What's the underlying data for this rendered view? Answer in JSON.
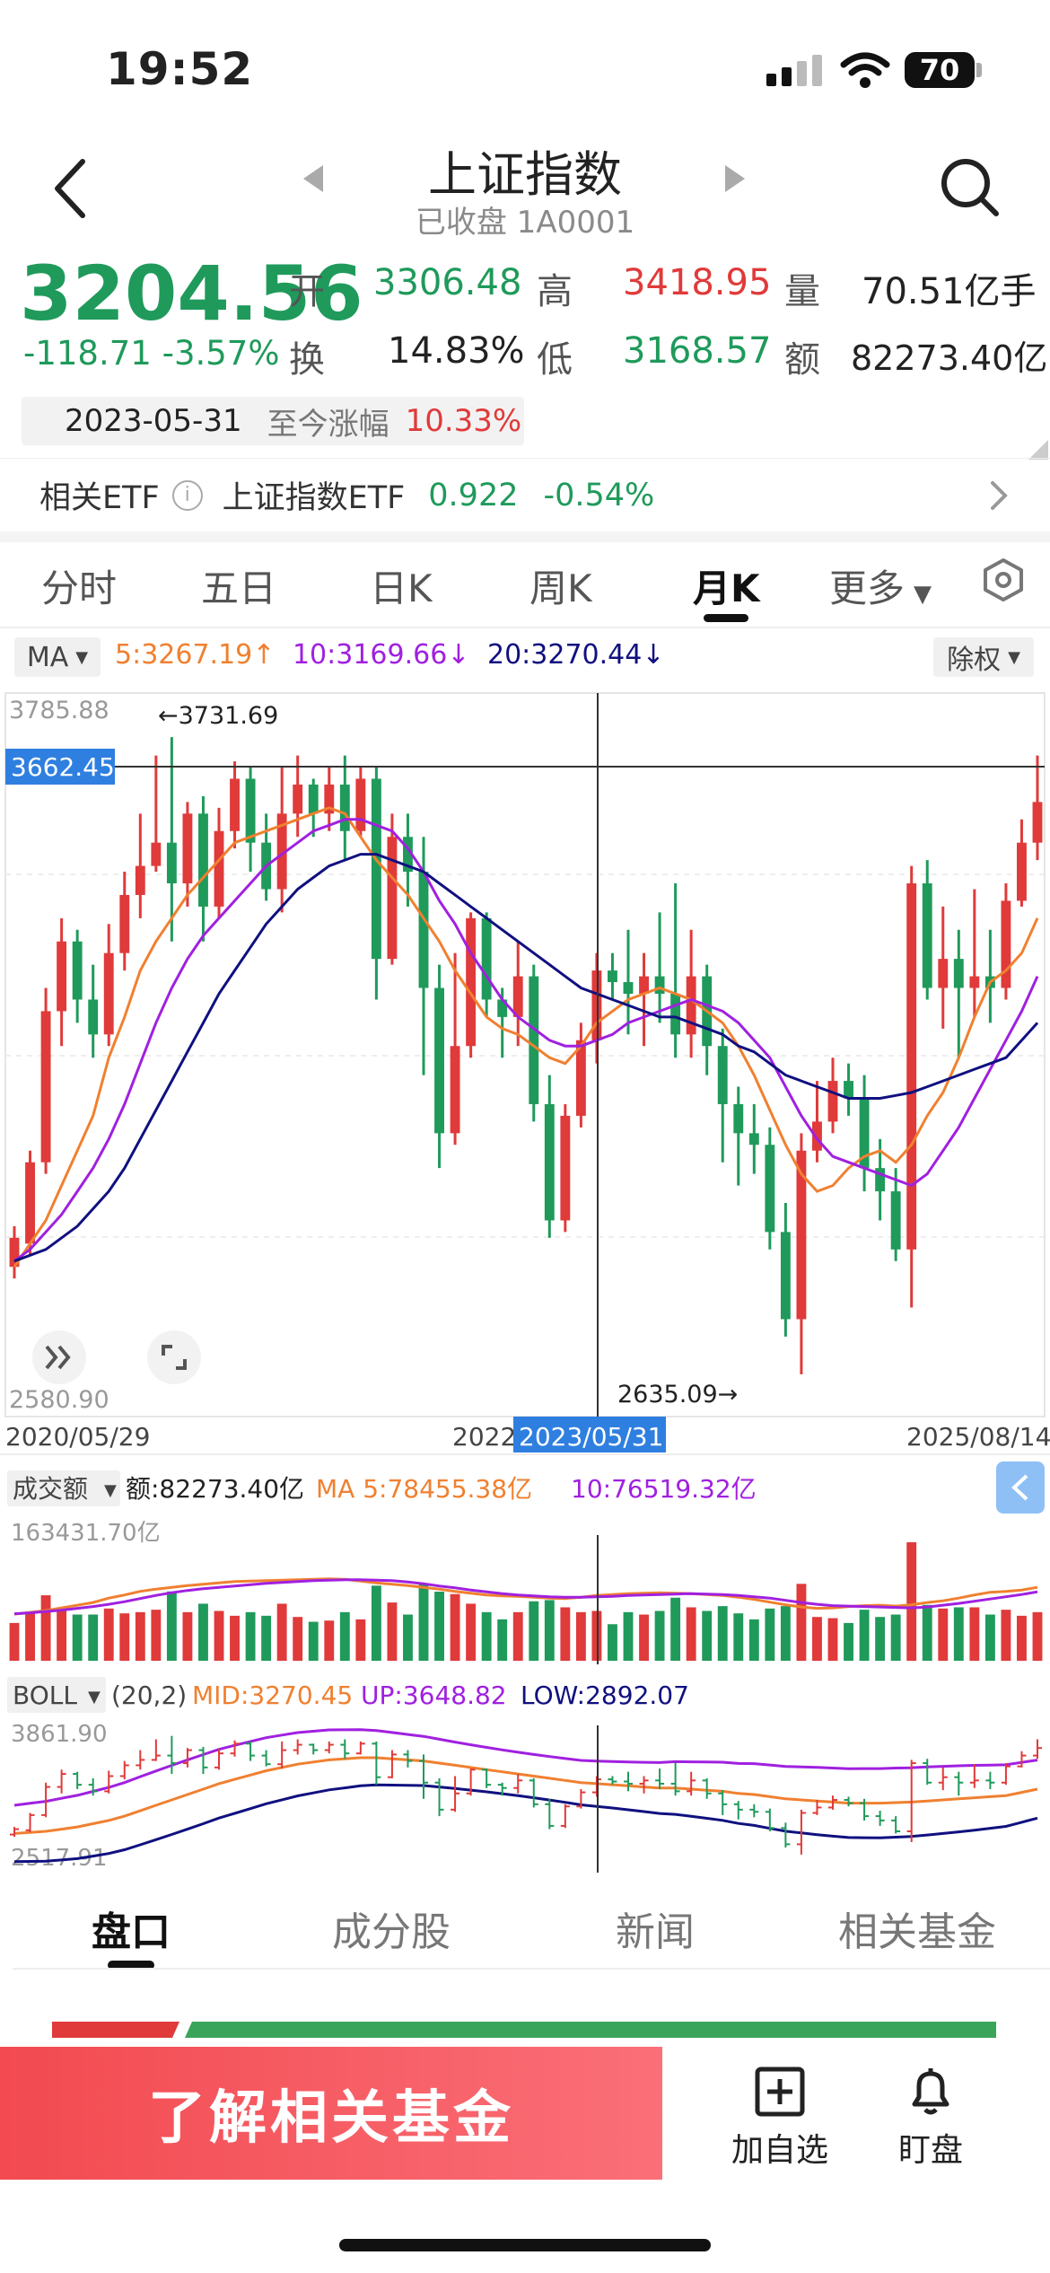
{
  "status": {
    "time": "19:52",
    "battery": "70"
  },
  "header": {
    "title": "上证指数",
    "subtitle": "已收盘 1A0001"
  },
  "quote": {
    "price": "3204.56",
    "change": "-118.71",
    "change_pct": "-3.57%",
    "open_label": "开",
    "open": "3306.48",
    "high_label": "高",
    "high": "3418.95",
    "volume_label": "量",
    "volume": "70.51亿手",
    "turnover_label": "换",
    "turnover": "14.83%",
    "low_label": "低",
    "low": "3168.57",
    "amount_label": "额",
    "amount": "82273.40亿",
    "date": "2023-05-31",
    "since_label": "至今涨幅",
    "since_pct": "10.33%"
  },
  "etf": {
    "label": "相关ETF",
    "info_icon": "i",
    "name": "上证指数ETF",
    "price": "0.922",
    "change": "-0.54%"
  },
  "period_tabs": [
    "分时",
    "五日",
    "日K",
    "周K",
    "月K",
    "更多"
  ],
  "period_active": 4,
  "ma_row": {
    "select": "MA",
    "ma5": "5:3267.19",
    "ma10": "10:3169.66",
    "ma20": "20:3270.44",
    "fq": "除权"
  },
  "kline": {
    "y_top": "3785.88",
    "y_bottom": "2580.90",
    "crosshair_price": "3662.45",
    "max_marker": "←3731.69",
    "min_marker": "2635.09→",
    "x_start": "2020/05/29",
    "x_mid": "2022",
    "x_selected": "2023/05/31",
    "x_end": "2025/08/14"
  },
  "volume_panel": {
    "select": "成交额",
    "amount": "额:82273.40亿",
    "ma5": "MA 5:78455.38亿",
    "ma10": "10:76519.32亿",
    "y_top": "163431.70亿"
  },
  "boll_panel": {
    "select": "BOLL",
    "params": "(20,2)",
    "mid": "MID:3270.45",
    "up": "UP:3648.82",
    "low": "LOW:2892.07",
    "y_top": "3861.90",
    "y_bottom": "2517.91"
  },
  "bottom_tabs": [
    "盘口",
    "成分股",
    "新闻",
    "相关基金"
  ],
  "bottom_active": 0,
  "footer": {
    "cta": "了解相关基金",
    "watch": "加自选",
    "alert": "盯盘"
  },
  "colors": {
    "up": "#e03a3a",
    "down": "#1f9a5b",
    "ma5": "#f08030",
    "ma10": "#a020e0",
    "ma20": "#101080",
    "accent": "#2f7fe0"
  },
  "chart_data": {
    "type": "candlestick",
    "period": "monthly",
    "ylim": [
      2580.9,
      3785.88
    ],
    "candles": [
      [
        2820,
        2870,
        2800,
        2890
      ],
      [
        2860,
        3000,
        2840,
        3020
      ],
      [
        3000,
        3260,
        2980,
        3300
      ],
      [
        3260,
        3380,
        3200,
        3420
      ],
      [
        3380,
        3280,
        3240,
        3400
      ],
      [
        3280,
        3220,
        3180,
        3340
      ],
      [
        3220,
        3360,
        3200,
        3410
      ],
      [
        3360,
        3460,
        3330,
        3500
      ],
      [
        3460,
        3510,
        3420,
        3600
      ],
      [
        3510,
        3550,
        3500,
        3700
      ],
      [
        3550,
        3480,
        3380,
        3731.69
      ],
      [
        3480,
        3600,
        3440,
        3620
      ],
      [
        3600,
        3440,
        3380,
        3630
      ],
      [
        3440,
        3570,
        3420,
        3610
      ],
      [
        3570,
        3660,
        3540,
        3690
      ],
      [
        3660,
        3550,
        3500,
        3680
      ],
      [
        3550,
        3470,
        3450,
        3600
      ],
      [
        3470,
        3600,
        3430,
        3680
      ],
      [
        3600,
        3650,
        3560,
        3700
      ],
      [
        3650,
        3600,
        3560,
        3660
      ],
      [
        3600,
        3650,
        3570,
        3680
      ],
      [
        3650,
        3570,
        3520,
        3700
      ],
      [
        3570,
        3660,
        3560,
        3680
      ],
      [
        3660,
        3350,
        3280,
        3680
      ],
      [
        3350,
        3560,
        3340,
        3600
      ],
      [
        3560,
        3500,
        3440,
        3600
      ],
      [
        3500,
        3300,
        3150,
        3560
      ],
      [
        3300,
        3050,
        2990,
        3340
      ],
      [
        3050,
        3200,
        3030,
        3360
      ],
      [
        3200,
        3420,
        3180,
        3430
      ],
      [
        3420,
        3280,
        3250,
        3430
      ],
      [
        3280,
        3250,
        3180,
        3300
      ],
      [
        3250,
        3320,
        3200,
        3380
      ],
      [
        3320,
        3100,
        3070,
        3340
      ],
      [
        3100,
        2900,
        2870,
        3150
      ],
      [
        2900,
        3080,
        2880,
        3100
      ],
      [
        3080,
        3210,
        3060,
        3240
      ],
      [
        3210,
        3330,
        3170,
        3360
      ],
      [
        3330,
        3310,
        3280,
        3360
      ],
      [
        3310,
        3290,
        3220,
        3400
      ],
      [
        3290,
        3320,
        3200,
        3360
      ],
      [
        3320,
        3290,
        3240,
        3430
      ],
      [
        3290,
        3220,
        3180,
        3480
      ],
      [
        3220,
        3320,
        3180,
        3400
      ],
      [
        3320,
        3200,
        3150,
        3340
      ],
      [
        3200,
        3100,
        3000,
        3230
      ],
      [
        3100,
        3050,
        2960,
        3130
      ],
      [
        3050,
        3030,
        2980,
        3100
      ],
      [
        3030,
        2880,
        2850,
        3060
      ],
      [
        2880,
        2730,
        2700,
        2930
      ],
      [
        2730,
        3020,
        2635.09,
        3050
      ],
      [
        3020,
        3070,
        3000,
        3140
      ],
      [
        3070,
        3140,
        3050,
        3180
      ],
      [
        3140,
        3110,
        3080,
        3170
      ],
      [
        3110,
        2990,
        2950,
        3150
      ],
      [
        2990,
        2950,
        2900,
        3040
      ],
      [
        2950,
        2850,
        2830,
        2990
      ],
      [
        2850,
        3480,
        2750,
        3510
      ],
      [
        3480,
        3300,
        3280,
        3520
      ],
      [
        3300,
        3350,
        3230,
        3440
      ],
      [
        3350,
        3300,
        3180,
        3400
      ],
      [
        3300,
        3320,
        3250,
        3470
      ],
      [
        3320,
        3300,
        3240,
        3400
      ],
      [
        3300,
        3450,
        3280,
        3480
      ],
      [
        3450,
        3550,
        3440,
        3590
      ],
      [
        3550,
        3620,
        3520,
        3700
      ]
    ],
    "ma5": [
      2820,
      2860,
      2900,
      2960,
      3020,
      3080,
      3180,
      3250,
      3330,
      3380,
      3420,
      3460,
      3490,
      3520,
      3550,
      3560,
      3570,
      3580,
      3590,
      3600,
      3610,
      3600,
      3560,
      3520,
      3490,
      3460,
      3420,
      3380,
      3330,
      3290,
      3250,
      3230,
      3220,
      3200,
      3180,
      3170,
      3200,
      3240,
      3260,
      3280,
      3290,
      3300,
      3290,
      3280,
      3260,
      3240,
      3200,
      3150,
      3090,
      3030,
      2980,
      2950,
      2960,
      2990,
      3010,
      3020,
      3000,
      3030,
      3080,
      3120,
      3180,
      3250,
      3310,
      3330,
      3360,
      3420
    ],
    "ma10": [
      2830,
      2850,
      2880,
      2910,
      2950,
      2990,
      3040,
      3100,
      3170,
      3240,
      3300,
      3350,
      3390,
      3420,
      3450,
      3480,
      3510,
      3530,
      3550,
      3570,
      3580,
      3590,
      3590,
      3580,
      3570,
      3540,
      3500,
      3450,
      3410,
      3360,
      3320,
      3280,
      3250,
      3230,
      3210,
      3200,
      3200,
      3210,
      3220,
      3240,
      3250,
      3260,
      3270,
      3280,
      3270,
      3260,
      3240,
      3210,
      3180,
      3130,
      3080,
      3040,
      3010,
      3000,
      2990,
      2980,
      2970,
      2960,
      2980,
      3020,
      3060,
      3110,
      3160,
      3210,
      3260,
      3320
    ],
    "ma20": [
      2830,
      2840,
      2850,
      2870,
      2890,
      2920,
      2950,
      2990,
      3040,
      3090,
      3140,
      3190,
      3240,
      3290,
      3330,
      3370,
      3410,
      3440,
      3470,
      3490,
      3510,
      3520,
      3530,
      3530,
      3520,
      3510,
      3500,
      3480,
      3460,
      3440,
      3420,
      3400,
      3380,
      3360,
      3340,
      3320,
      3300,
      3290,
      3280,
      3270,
      3260,
      3250,
      3250,
      3240,
      3230,
      3220,
      3200,
      3190,
      3170,
      3150,
      3140,
      3130,
      3120,
      3110,
      3110,
      3110,
      3115,
      3120,
      3130,
      3140,
      3150,
      3160,
      3170,
      3180,
      3210,
      3240
    ]
  }
}
